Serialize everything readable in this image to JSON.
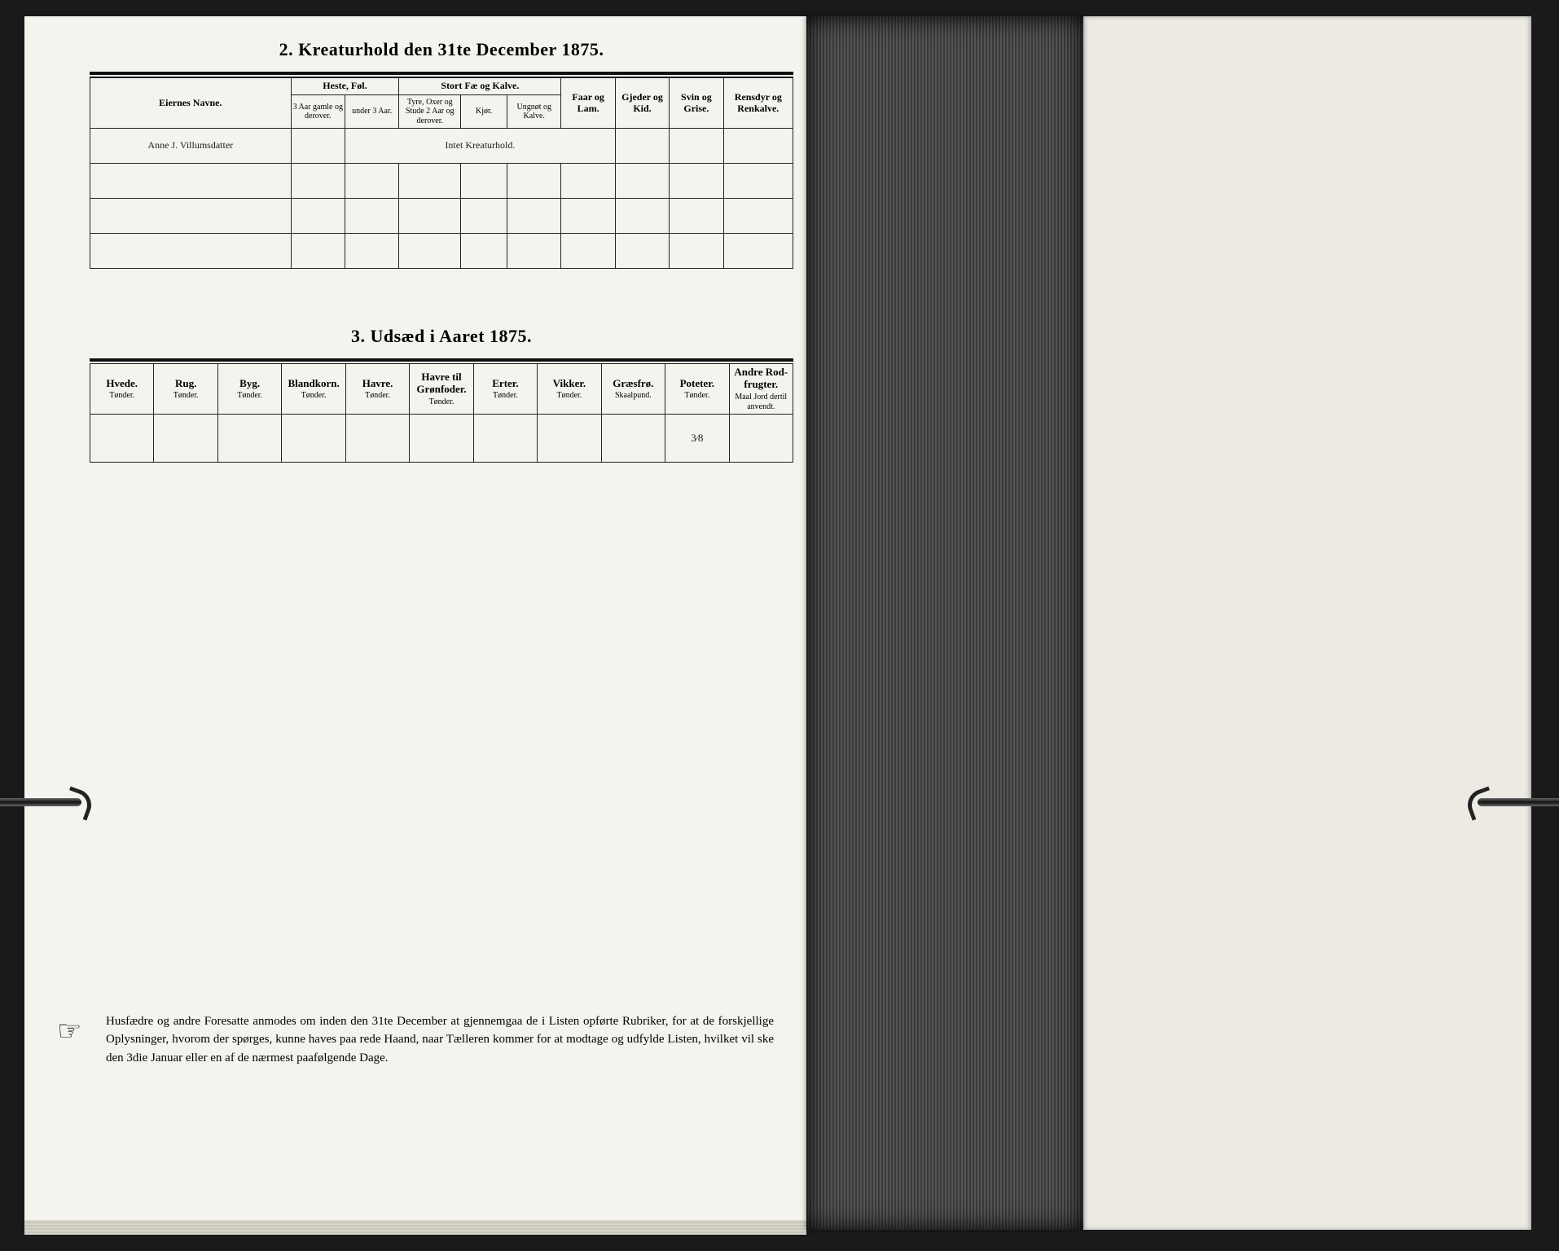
{
  "section2": {
    "title": "2.  Kreaturhold den 31te December 1875.",
    "owner_header": "Eiernes Navne.",
    "heste_group": "Heste, Føl.",
    "heste_cols": [
      "3 Aar gamle og derover.",
      "under 3 Aar."
    ],
    "fae_group": "Stort Fæ og Kalve.",
    "fae_cols": [
      "Tyre, Oxer og Stude 2 Aar og derover.",
      "Kjør.",
      "Ungnøt og Kalve."
    ],
    "cols_right": [
      "Faar og Lam.",
      "Gjeder og Kid.",
      "Svin og Grise.",
      "Rensdyr og Renkalve."
    ],
    "row1_name": "Anne J. Villumsdatter",
    "row1_note": "Intet   Kreaturhold."
  },
  "section3": {
    "title": "3.  Udsæd i Aaret 1875.",
    "cols": [
      {
        "h": "Hvede.",
        "u": "Tønder."
      },
      {
        "h": "Rug.",
        "u": "Tønder."
      },
      {
        "h": "Byg.",
        "u": "Tønder."
      },
      {
        "h": "Blandkorn.",
        "u": "Tønder."
      },
      {
        "h": "Havre.",
        "u": "Tønder."
      },
      {
        "h": "Havre til Grønfoder.",
        "u": "Tønder."
      },
      {
        "h": "Erter.",
        "u": "Tønder."
      },
      {
        "h": "Vikker.",
        "u": "Tønder."
      },
      {
        "h": "Græsfrø.",
        "u": "Skaalpund."
      },
      {
        "h": "Poteter.",
        "u": "Tønder."
      },
      {
        "h": "Andre Rod-frugter.",
        "u": "Maal Jord dertil anvendt."
      }
    ],
    "values": [
      "",
      "",
      "",
      "",
      "",
      "",
      "",
      "",
      "",
      "3⁄8",
      ""
    ]
  },
  "notice": {
    "text": "Husfædre og andre Foresatte anmodes om inden den 31te December at gjennemgaa de i Listen opførte Rubriker, for at de forskjellige Oplysninger, hvorom der spørges, kunne haves paa rede Haand, naar Tælleren kommer for at modtage og udfylde Listen, hvilket vil ske den 3die Januar eller en af de nærmest paafølgende Dage."
  },
  "style": {
    "page_bg": "#f5f3ee",
    "ink": "#111111",
    "border": "#222222",
    "title_fontsize_pt": 16,
    "header_fontsize_pt": 9,
    "body_fontsize_pt": 11,
    "handwriting_fontsize_pt": 20
  }
}
